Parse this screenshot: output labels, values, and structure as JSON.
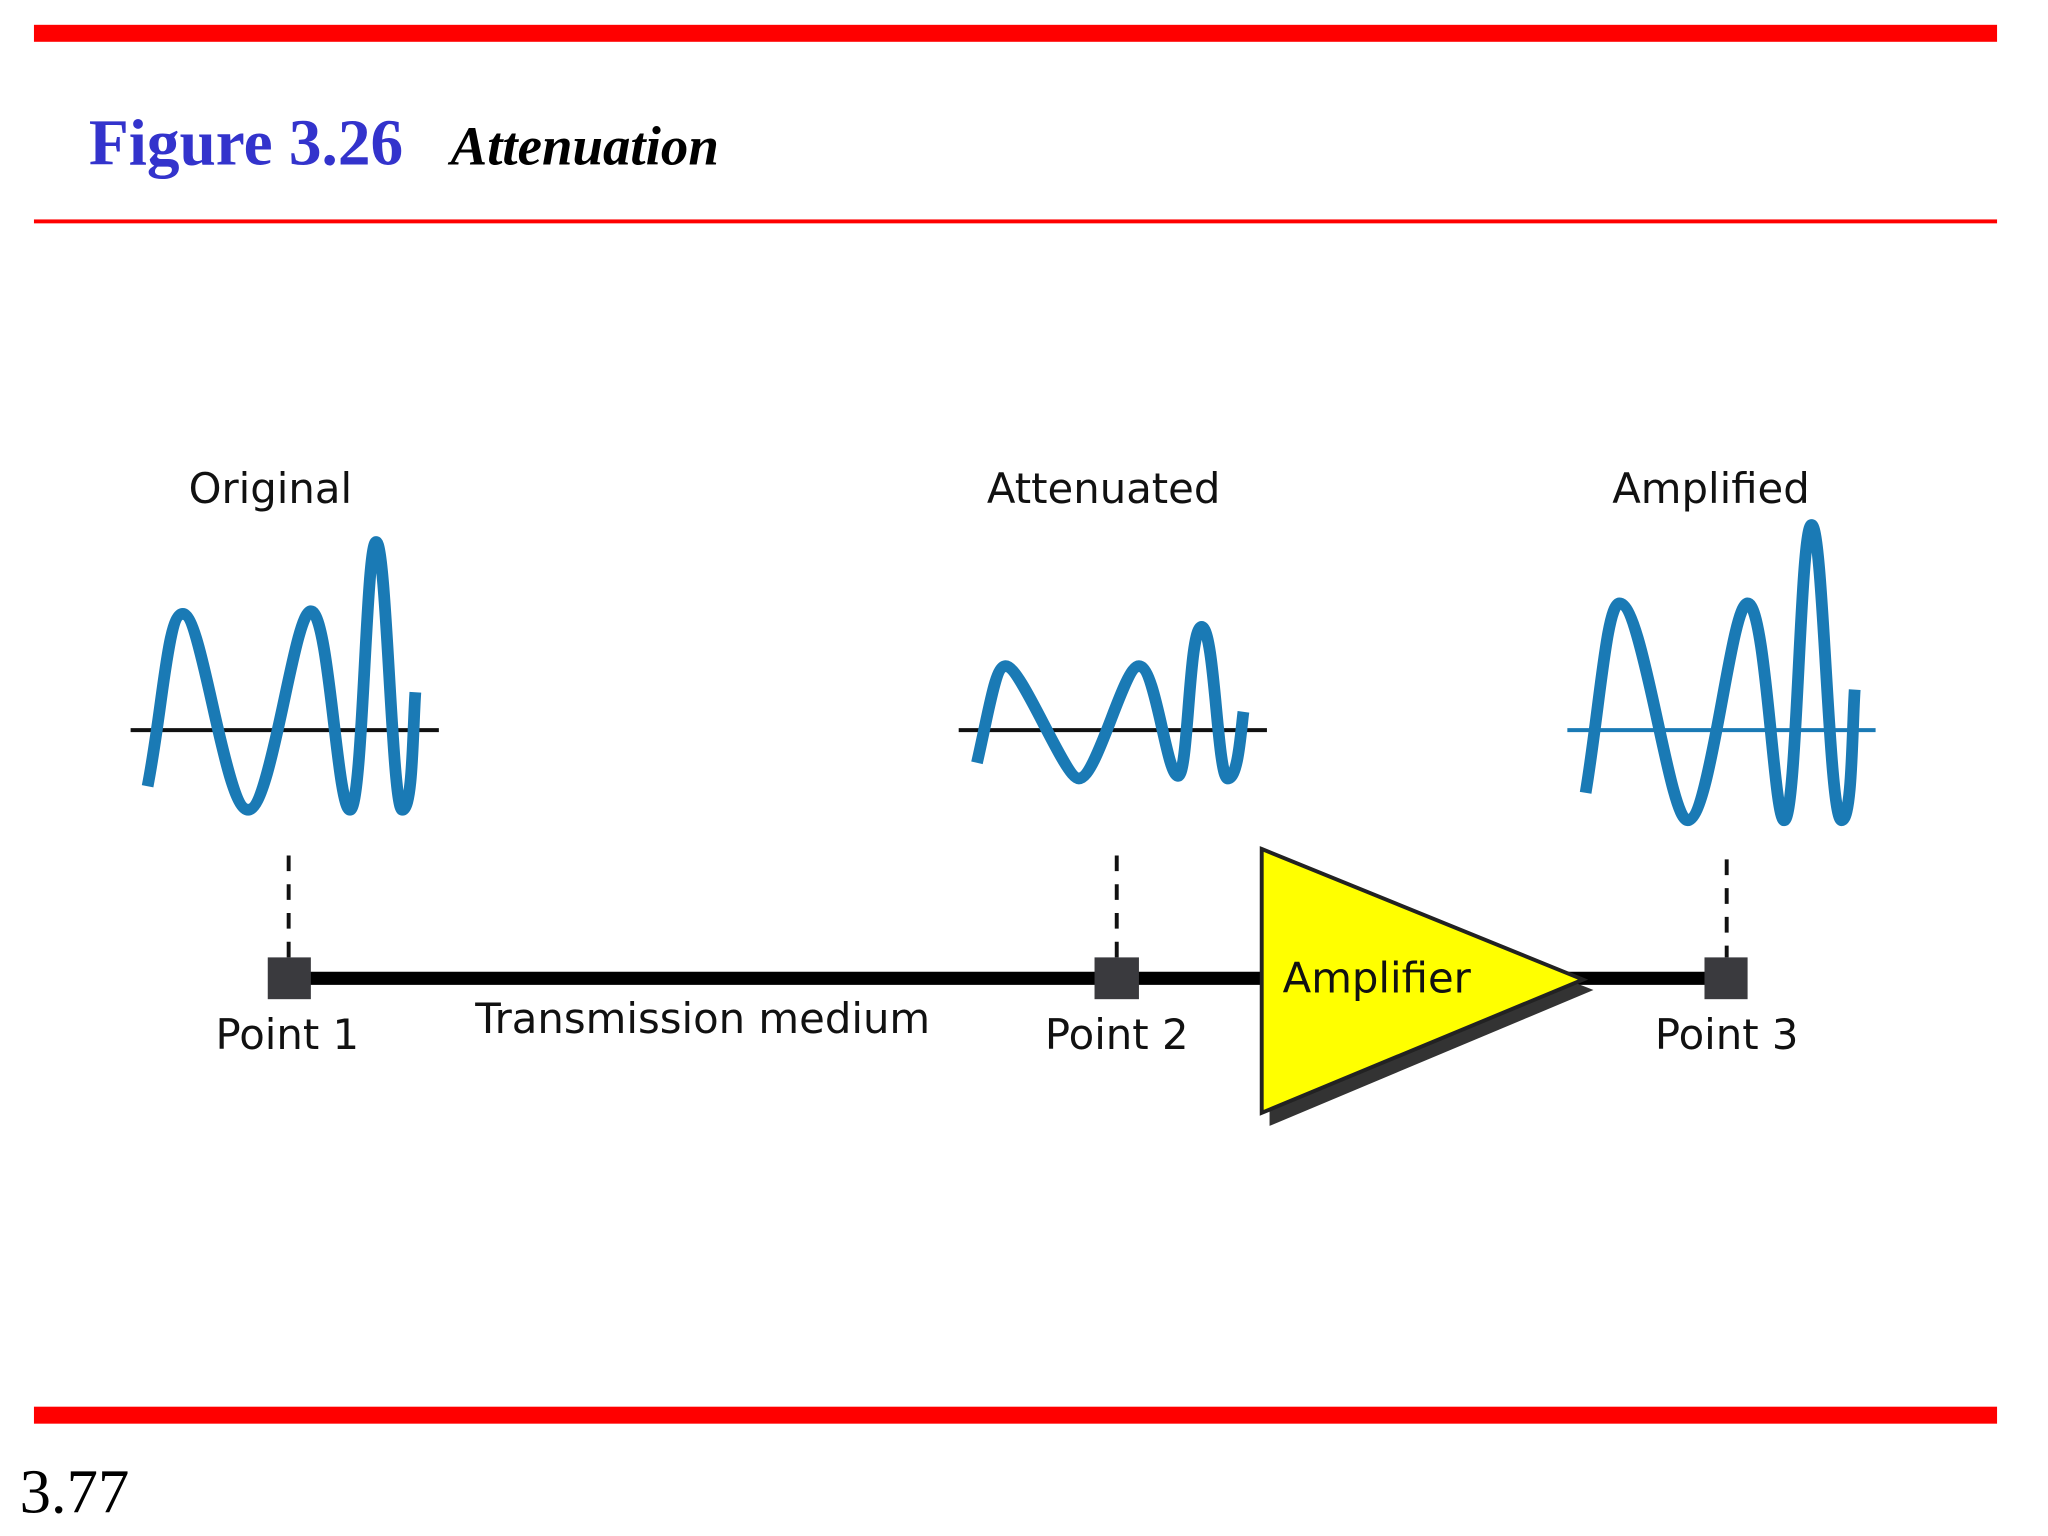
{
  "header": {
    "figure": "Figure 3.26",
    "caption": "Attenuation"
  },
  "signals": [
    {
      "label": "Original"
    },
    {
      "label": "Attenuated"
    },
    {
      "label": "Amplified"
    }
  ],
  "points": [
    {
      "label": "Point 1"
    },
    {
      "label": "Point 2"
    },
    {
      "label": "Point 3"
    }
  ],
  "medium": {
    "label": "Transmission medium"
  },
  "amplifier": {
    "label": "Amplifier"
  },
  "footer": {
    "page": "3.77"
  }
}
